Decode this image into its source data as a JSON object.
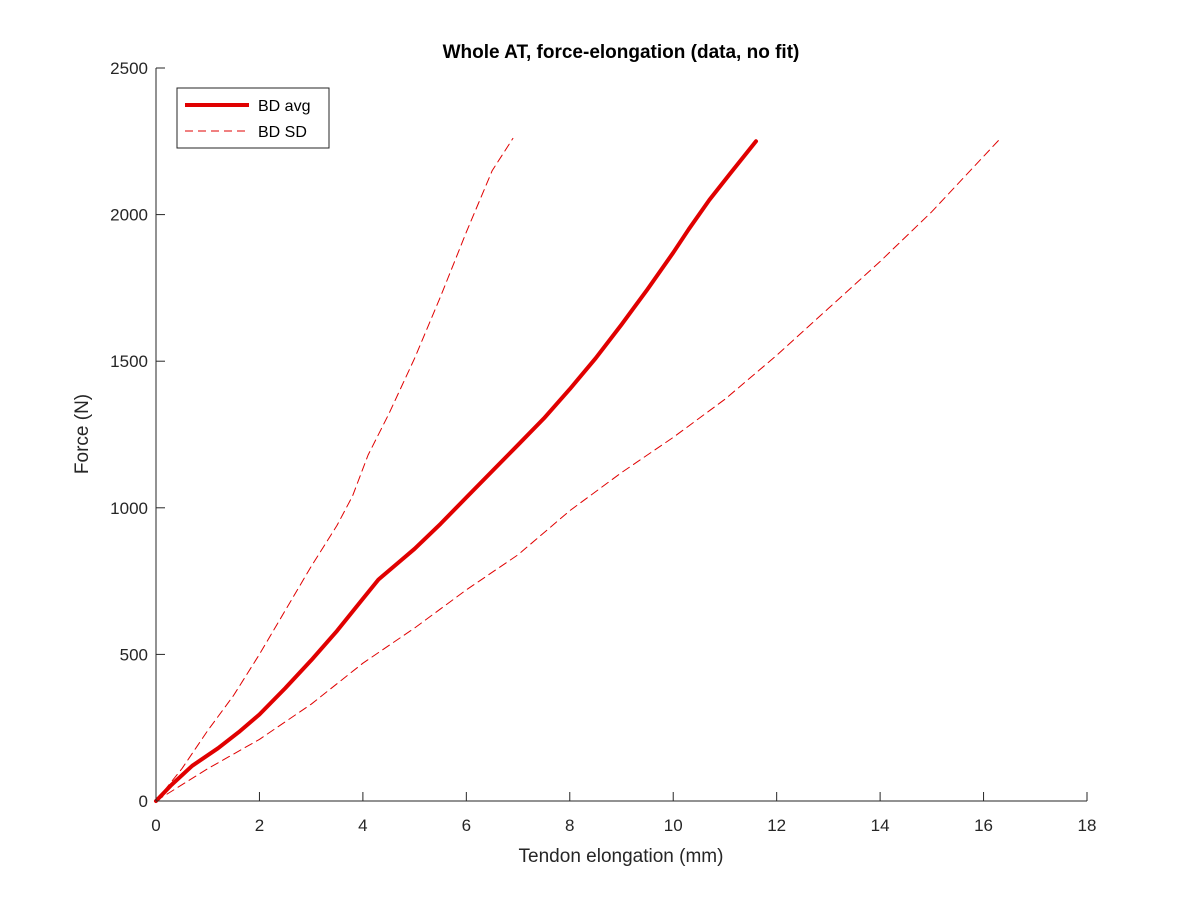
{
  "chart_data": {
    "type": "line",
    "title": "Whole AT, force-elongation (data, no fit)",
    "xlabel": "Tendon elongation (mm)",
    "ylabel": "Force (N)",
    "xlim": [
      0,
      18
    ],
    "ylim": [
      0,
      2500
    ],
    "xticks": [
      0,
      2,
      4,
      6,
      8,
      10,
      12,
      14,
      16,
      18
    ],
    "yticks": [
      0,
      500,
      1000,
      1500,
      2000,
      2500
    ],
    "grid": false,
    "legend_position": "top-left",
    "series": [
      {
        "name": "BD avg",
        "color": "#e00000",
        "style": "solid",
        "x": [
          0,
          0.3,
          0.7,
          1.2,
          1.6,
          2.0,
          2.5,
          3.0,
          3.5,
          4.0,
          4.3,
          4.7,
          5.0,
          5.5,
          6.0,
          6.5,
          7.0,
          7.5,
          8.0,
          8.5,
          9.0,
          9.5,
          10.0,
          10.3,
          10.7,
          11.1,
          11.6
        ],
        "y": [
          0,
          55,
          120,
          180,
          235,
          295,
          385,
          480,
          580,
          690,
          755,
          815,
          860,
          945,
          1035,
          1125,
          1215,
          1305,
          1405,
          1510,
          1625,
          1745,
          1870,
          1950,
          2050,
          2140,
          2250
        ]
      },
      {
        "name": "BD SD",
        "color": "#e00000",
        "style": "dashed",
        "x": [
          0,
          0.5,
          1.0,
          1.5,
          2.0,
          2.5,
          3.0,
          3.5,
          3.8,
          4.1,
          4.5,
          5.0,
          5.5,
          6.0,
          6.5,
          6.9
        ],
        "y": [
          0,
          110,
          240,
          360,
          500,
          650,
          800,
          940,
          1040,
          1180,
          1320,
          1510,
          1720,
          1940,
          2150,
          2260
        ]
      },
      {
        "name": "",
        "color": "#e00000",
        "style": "dashed",
        "x": [
          0,
          1.0,
          2.0,
          3.0,
          4.0,
          5.0,
          6.0,
          7.0,
          8.0,
          9.0,
          10.0,
          11.0,
          12.0,
          13.0,
          14.0,
          15.0,
          16.3
        ],
        "y": [
          0,
          110,
          210,
          330,
          470,
          590,
          720,
          840,
          990,
          1120,
          1240,
          1370,
          1520,
          1680,
          1840,
          2010,
          2255
        ]
      }
    ]
  }
}
